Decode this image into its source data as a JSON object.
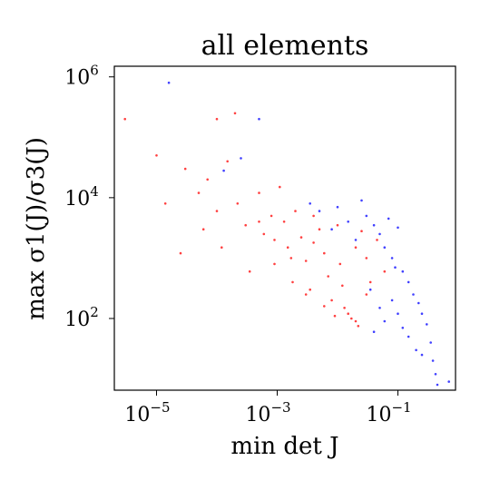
{
  "chart_data": {
    "type": "scatter",
    "title": "all elements",
    "xlabel": "min det J",
    "ylabel": "max σ1(J)/σ3(J)",
    "xscale": "log",
    "yscale": "log",
    "xlim": [
      2e-06,
      0.9
    ],
    "ylim": [
      6.5,
      1500000
    ],
    "xticks": [
      {
        "value": 1e-05,
        "label": "10",
        "exp": "−5"
      },
      {
        "value": 0.001,
        "label": "10",
        "exp": "−3"
      },
      {
        "value": 0.1,
        "label": "10",
        "exp": "−1"
      }
    ],
    "yticks": [
      {
        "value": 100,
        "label": "10",
        "exp": "2"
      },
      {
        "value": 10000,
        "label": "10",
        "exp": "4"
      },
      {
        "value": 1000000,
        "label": "10",
        "exp": "6"
      }
    ],
    "grid": false,
    "series": [
      {
        "color": "#ff0000",
        "points": [
          [
            3e-06,
            200000
          ],
          [
            1e-05,
            50000
          ],
          [
            1.4e-05,
            8000
          ],
          [
            2.5e-05,
            1200
          ],
          [
            3e-05,
            30000
          ],
          [
            5e-05,
            12000
          ],
          [
            6e-05,
            3000
          ],
          [
            7e-05,
            20000
          ],
          [
            0.0001,
            200000
          ],
          [
            0.0001,
            6000
          ],
          [
            0.00012,
            1500
          ],
          [
            0.00015,
            40000
          ],
          [
            0.0002,
            250000
          ],
          [
            0.00022,
            8000
          ],
          [
            0.0003,
            3500
          ],
          [
            0.00035,
            600
          ],
          [
            0.0005,
            12000
          ],
          [
            0.0006,
            2500
          ],
          [
            0.0008,
            5000
          ],
          [
            0.0009,
            800
          ],
          [
            0.0011,
            15000
          ],
          [
            0.0013,
            4000
          ],
          [
            0.0015,
            1500
          ],
          [
            0.0018,
            400
          ],
          [
            0.002,
            6000
          ],
          [
            0.0025,
            2200
          ],
          [
            0.003,
            900
          ],
          [
            0.0035,
            300
          ],
          [
            0.004,
            5000
          ],
          [
            0.005,
            3000
          ],
          [
            0.006,
            1200
          ],
          [
            0.007,
            500
          ],
          [
            0.008,
            200
          ],
          [
            0.01,
            3500
          ],
          [
            0.011,
            800
          ],
          [
            0.012,
            350
          ],
          [
            0.013,
            150
          ],
          [
            0.015,
            120
          ],
          [
            0.017,
            100
          ],
          [
            0.02,
            90
          ],
          [
            0.022,
            75
          ],
          [
            0.025,
            2800
          ],
          [
            0.03,
            1000
          ],
          [
            0.035,
            400
          ],
          [
            0.045,
            2000
          ],
          [
            0.06,
            600
          ],
          [
            0.003,
            250
          ],
          [
            0.006,
            160
          ],
          [
            0.009,
            110
          ],
          [
            0.004,
            1800
          ],
          [
            0.0017,
            1000
          ],
          [
            0.0009,
            2000
          ],
          [
            0.0005,
            4000
          ],
          [
            0.02,
            1500
          ],
          [
            0.03,
            250
          ]
        ]
      },
      {
        "color": "#0000ff",
        "points": [
          [
            1.6e-05,
            800000
          ],
          [
            0.00013,
            28000
          ],
          [
            0.00025,
            45000
          ],
          [
            0.0005,
            200000
          ],
          [
            0.0035,
            8000
          ],
          [
            0.005,
            6000
          ],
          [
            0.008,
            3000
          ],
          [
            0.01,
            7000
          ],
          [
            0.015,
            4000
          ],
          [
            0.02,
            2000
          ],
          [
            0.025,
            9000
          ],
          [
            0.03,
            5000
          ],
          [
            0.04,
            3500
          ],
          [
            0.05,
            2500
          ],
          [
            0.06,
            1500
          ],
          [
            0.07,
            4500
          ],
          [
            0.08,
            1000
          ],
          [
            0.09,
            700
          ],
          [
            0.1,
            3200
          ],
          [
            0.12,
            600
          ],
          [
            0.15,
            400
          ],
          [
            0.18,
            250
          ],
          [
            0.22,
            180
          ],
          [
            0.25,
            120
          ],
          [
            0.3,
            80
          ],
          [
            0.35,
            40
          ],
          [
            0.38,
            20
          ],
          [
            0.42,
            12
          ],
          [
            0.45,
            8
          ],
          [
            0.7,
            9
          ],
          [
            0.035,
            300
          ],
          [
            0.05,
            150
          ],
          [
            0.06,
            90
          ],
          [
            0.04,
            60
          ],
          [
            0.08,
            200
          ],
          [
            0.1,
            120
          ],
          [
            0.12,
            70
          ],
          [
            0.15,
            50
          ],
          [
            0.2,
            30
          ],
          [
            0.25,
            25
          ]
        ]
      }
    ]
  }
}
